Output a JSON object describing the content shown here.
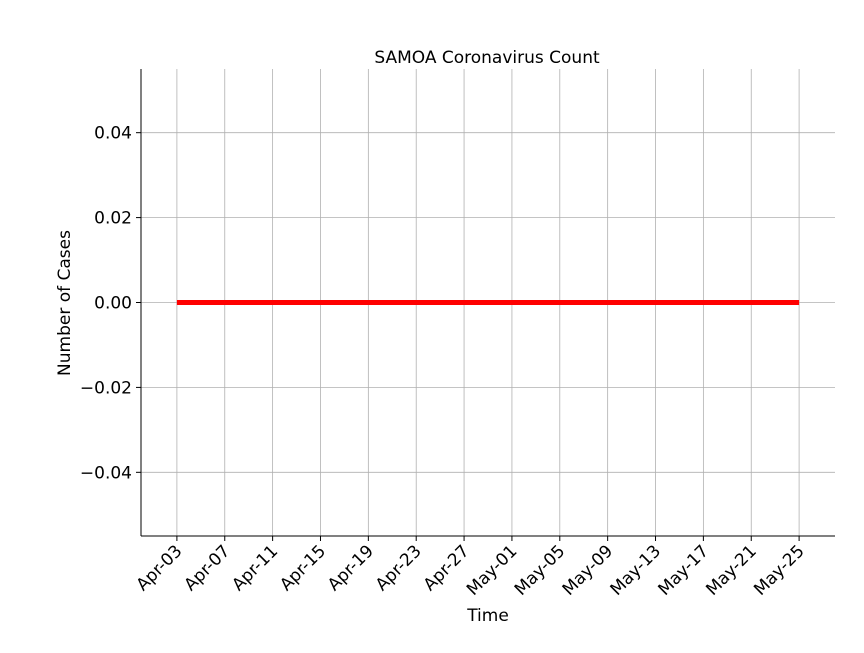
{
  "chart_data": {
    "type": "line",
    "title": "SAMOA Coronavirus Count",
    "xlabel": "Time",
    "ylabel": "Number of Cases",
    "x_ticks": [
      "Apr-03",
      "Apr-07",
      "Apr-11",
      "Apr-15",
      "Apr-19",
      "Apr-23",
      "Apr-27",
      "May-01",
      "May-05",
      "May-09",
      "May-13",
      "May-17",
      "May-21",
      "May-25"
    ],
    "x_tick_dates": [
      "2020-04-03",
      "2020-04-07",
      "2020-04-11",
      "2020-04-15",
      "2020-04-19",
      "2020-04-23",
      "2020-04-27",
      "2020-05-01",
      "2020-05-05",
      "2020-05-09",
      "2020-05-13",
      "2020-05-17",
      "2020-05-21",
      "2020-05-25"
    ],
    "xlim": [
      "2020-03-31",
      "2020-05-28"
    ],
    "y_ticks": [
      0.04,
      0.02,
      0.0,
      -0.02,
      -0.04
    ],
    "y_tick_labels": [
      "0.04",
      "0.02",
      "0.00",
      "−0.02",
      "−0.04"
    ],
    "ylim": [
      -0.055,
      0.055
    ],
    "grid": true,
    "series": [
      {
        "color": "#ff0000",
        "x": [
          "2020-04-03",
          "2020-05-25"
        ],
        "values": [
          0,
          0
        ]
      }
    ]
  }
}
